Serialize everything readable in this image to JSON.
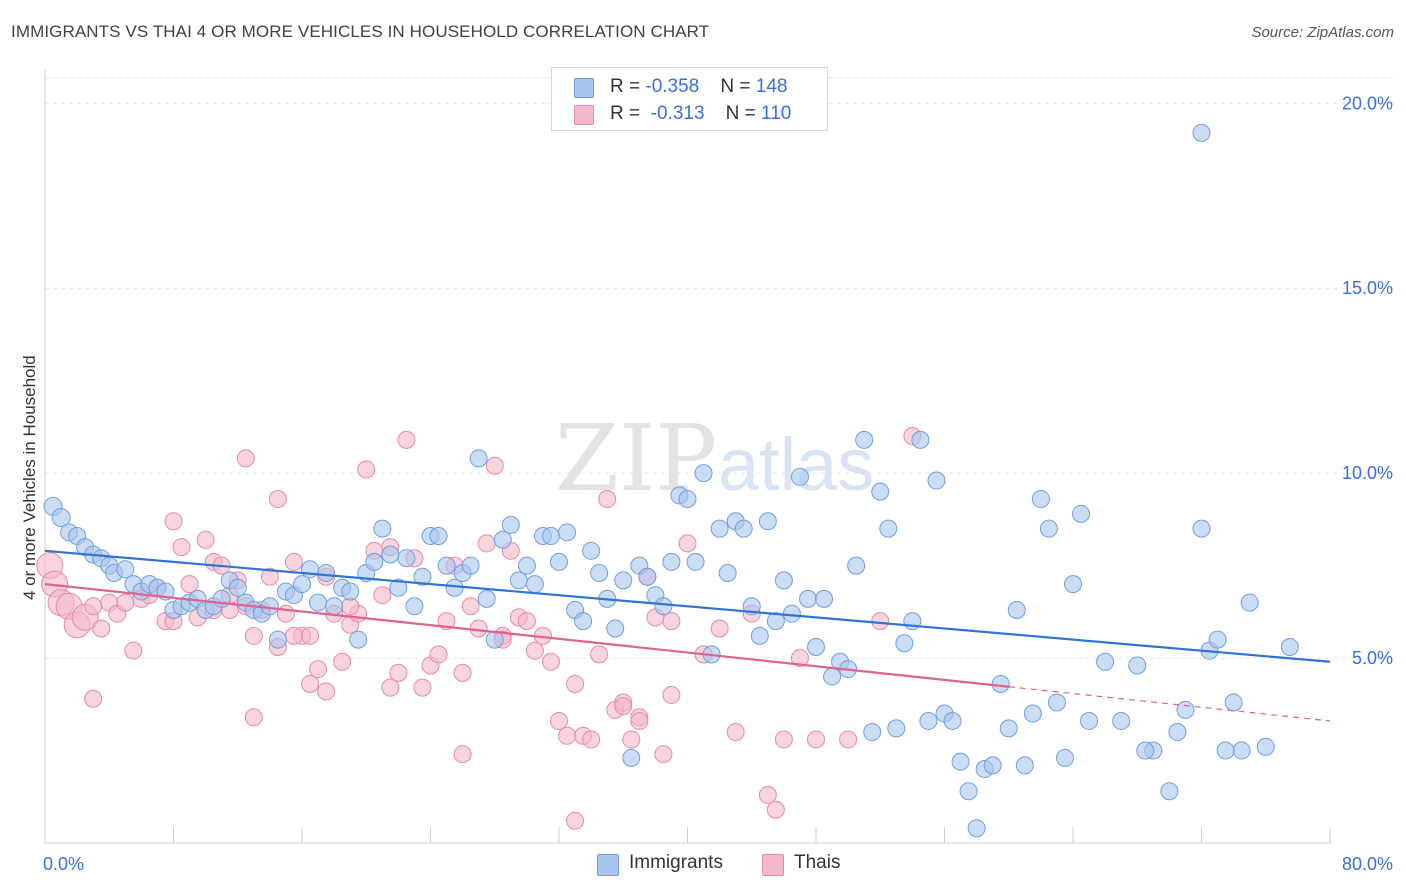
{
  "header": {
    "title": "IMMIGRANTS VS THAI 4 OR MORE VEHICLES IN HOUSEHOLD CORRELATION CHART",
    "source": "Source: ZipAtlas.com"
  },
  "legend": {
    "immigrants": {
      "r_label": "R = ",
      "r_value": "-0.358",
      "n_label": "N = ",
      "n_value": "148"
    },
    "thais": {
      "r_label": "R = ",
      "r_value": "-0.313",
      "n_label": "N = ",
      "n_value": "110"
    }
  },
  "bottom_legend": {
    "immigrants": "Immigrants",
    "thais": "Thais"
  },
  "watermark": {
    "zip": "ZIP",
    "atlas": "atlas"
  },
  "colors": {
    "immigrants_fill": "#a9c6ee",
    "immigrants_stroke": "#6f9fdf",
    "immigrants_line": "#2f73d6",
    "thais_fill": "#f4b8ca",
    "thais_stroke": "#e889a6",
    "thais_line": "#e0628f",
    "grid": "#e3e3e3",
    "tick_label": "#3a6fd8"
  },
  "chart_data": {
    "type": "scatter",
    "title": "IMMIGRANTS VS THAI 4 OR MORE VEHICLES IN HOUSEHOLD CORRELATION CHART",
    "xlabel": "",
    "ylabel": "4 or more Vehicles in Household",
    "xlim": [
      0,
      80
    ],
    "ylim": [
      0,
      20.9
    ],
    "x_tick_labels": [
      "0.0%",
      "80.0%"
    ],
    "y_ticks": [
      5,
      10,
      15,
      20
    ],
    "y_tick_labels": [
      "5.0%",
      "10.0%",
      "15.0%",
      "20.0%"
    ],
    "grid": true,
    "legend_position": "top-center",
    "series": [
      {
        "name": "Immigrants",
        "trend": {
          "x": [
            0,
            80
          ],
          "y": [
            7.9,
            4.9
          ],
          "dashed_from": null
        },
        "points": [
          [
            0.5,
            9.1
          ],
          [
            1.0,
            8.8
          ],
          [
            1.5,
            8.4
          ],
          [
            2.0,
            8.3
          ],
          [
            2.5,
            8.0
          ],
          [
            3.0,
            7.8
          ],
          [
            3.5,
            7.7
          ],
          [
            4.0,
            7.5
          ],
          [
            4.3,
            7.3
          ],
          [
            5.0,
            7.4
          ],
          [
            5.5,
            7.0
          ],
          [
            6.0,
            6.8
          ],
          [
            6.5,
            7.0
          ],
          [
            7.0,
            6.9
          ],
          [
            7.5,
            6.8
          ],
          [
            8.0,
            6.3
          ],
          [
            8.5,
            6.4
          ],
          [
            9.0,
            6.5
          ],
          [
            9.5,
            6.6
          ],
          [
            10.0,
            6.3
          ],
          [
            10.5,
            6.4
          ],
          [
            11.0,
            6.6
          ],
          [
            11.5,
            7.1
          ],
          [
            12.0,
            6.9
          ],
          [
            12.5,
            6.5
          ],
          [
            13.0,
            6.3
          ],
          [
            13.5,
            6.2
          ],
          [
            14.0,
            6.4
          ],
          [
            14.5,
            5.5
          ],
          [
            15.0,
            6.8
          ],
          [
            15.5,
            6.7
          ],
          [
            16.0,
            7.0
          ],
          [
            16.5,
            7.4
          ],
          [
            17.0,
            6.5
          ],
          [
            17.5,
            7.3
          ],
          [
            18.0,
            6.4
          ],
          [
            18.5,
            6.9
          ],
          [
            19.0,
            6.8
          ],
          [
            19.5,
            5.5
          ],
          [
            20.0,
            7.3
          ],
          [
            20.5,
            7.6
          ],
          [
            21.0,
            8.5
          ],
          [
            21.5,
            7.8
          ],
          [
            22.0,
            6.9
          ],
          [
            22.5,
            7.7
          ],
          [
            23.0,
            6.4
          ],
          [
            23.5,
            7.2
          ],
          [
            24.0,
            8.3
          ],
          [
            24.5,
            8.3
          ],
          [
            25.0,
            7.5
          ],
          [
            25.5,
            6.9
          ],
          [
            26.0,
            7.3
          ],
          [
            26.5,
            7.5
          ],
          [
            27.0,
            10.4
          ],
          [
            27.5,
            6.6
          ],
          [
            28.0,
            5.5
          ],
          [
            28.5,
            8.2
          ],
          [
            29.0,
            8.6
          ],
          [
            29.5,
            7.1
          ],
          [
            30.0,
            7.5
          ],
          [
            30.5,
            7.0
          ],
          [
            31.0,
            8.3
          ],
          [
            31.5,
            8.3
          ],
          [
            32.0,
            7.6
          ],
          [
            32.5,
            8.4
          ],
          [
            33.0,
            6.3
          ],
          [
            33.5,
            6.0
          ],
          [
            34.0,
            7.9
          ],
          [
            34.5,
            7.3
          ],
          [
            35.0,
            6.6
          ],
          [
            35.5,
            5.8
          ],
          [
            36.0,
            7.1
          ],
          [
            36.5,
            2.3
          ],
          [
            37.0,
            7.5
          ],
          [
            37.5,
            7.2
          ],
          [
            38.0,
            6.7
          ],
          [
            38.5,
            6.4
          ],
          [
            39.0,
            7.6
          ],
          [
            39.5,
            9.4
          ],
          [
            40.0,
            9.3
          ],
          [
            40.5,
            7.6
          ],
          [
            41.0,
            10.0
          ],
          [
            41.5,
            5.1
          ],
          [
            42.0,
            8.5
          ],
          [
            42.5,
            7.3
          ],
          [
            43.0,
            8.7
          ],
          [
            43.5,
            8.5
          ],
          [
            44.0,
            6.4
          ],
          [
            44.5,
            5.6
          ],
          [
            45.0,
            8.7
          ],
          [
            45.5,
            6.0
          ],
          [
            46.0,
            7.1
          ],
          [
            46.5,
            6.2
          ],
          [
            47.0,
            9.9
          ],
          [
            47.5,
            6.6
          ],
          [
            48.0,
            5.3
          ],
          [
            48.5,
            6.6
          ],
          [
            49.0,
            4.5
          ],
          [
            49.5,
            4.9
          ],
          [
            50.0,
            4.7
          ],
          [
            50.5,
            7.5
          ],
          [
            51.0,
            10.9
          ],
          [
            51.5,
            3.0
          ],
          [
            52.0,
            9.5
          ],
          [
            52.5,
            8.5
          ],
          [
            53.0,
            3.1
          ],
          [
            53.5,
            5.4
          ],
          [
            54.0,
            6.0
          ],
          [
            54.5,
            10.9
          ],
          [
            55.0,
            3.3
          ],
          [
            55.5,
            9.8
          ],
          [
            56.0,
            3.5
          ],
          [
            56.5,
            3.3
          ],
          [
            57.0,
            2.2
          ],
          [
            57.5,
            1.4
          ],
          [
            58.0,
            0.4
          ],
          [
            58.5,
            2.0
          ],
          [
            59.0,
            2.1
          ],
          [
            59.5,
            4.3
          ],
          [
            60.0,
            3.1
          ],
          [
            60.5,
            6.3
          ],
          [
            61.0,
            2.1
          ],
          [
            61.5,
            3.5
          ],
          [
            62.0,
            9.3
          ],
          [
            62.5,
            8.5
          ],
          [
            63.0,
            3.8
          ],
          [
            63.5,
            2.3
          ],
          [
            64.0,
            7.0
          ],
          [
            64.5,
            8.9
          ],
          [
            65.0,
            3.3
          ],
          [
            66.0,
            4.9
          ],
          [
            67.0,
            3.3
          ],
          [
            68.0,
            4.8
          ],
          [
            69.0,
            2.5
          ],
          [
            70.0,
            1.4
          ],
          [
            70.5,
            3.0
          ],
          [
            71.0,
            3.6
          ],
          [
            72.0,
            8.5
          ],
          [
            72.5,
            5.2
          ],
          [
            73.0,
            5.5
          ],
          [
            74.0,
            3.8
          ],
          [
            74.5,
            2.5
          ],
          [
            75.0,
            6.5
          ],
          [
            76.0,
            2.6
          ],
          [
            77.5,
            5.3
          ],
          [
            73.5,
            2.5
          ],
          [
            68.5,
            2.5
          ],
          [
            72.0,
            19.2
          ]
        ]
      },
      {
        "name": "Thais",
        "trend": {
          "x": [
            0,
            80
          ],
          "y": [
            7.0,
            3.3
          ],
          "dashed_from": 60
        },
        "points": [
          [
            0.3,
            7.5
          ],
          [
            0.6,
            7.0
          ],
          [
            1.0,
            6.5
          ],
          [
            1.5,
            6.4
          ],
          [
            2.0,
            5.9
          ],
          [
            2.5,
            6.1
          ],
          [
            3.0,
            6.4
          ],
          [
            3.5,
            5.8
          ],
          [
            4.0,
            6.5
          ],
          [
            4.5,
            6.2
          ],
          [
            5.0,
            6.5
          ],
          [
            5.5,
            5.2
          ],
          [
            6.0,
            6.6
          ],
          [
            6.5,
            6.7
          ],
          [
            7.0,
            6.9
          ],
          [
            7.5,
            6.0
          ],
          [
            8.0,
            8.7
          ],
          [
            8.5,
            8.0
          ],
          [
            9.0,
            7.0
          ],
          [
            9.5,
            6.1
          ],
          [
            10.0,
            8.2
          ],
          [
            10.5,
            7.6
          ],
          [
            11.0,
            7.5
          ],
          [
            11.5,
            6.3
          ],
          [
            12.0,
            7.1
          ],
          [
            12.5,
            6.4
          ],
          [
            13.0,
            5.6
          ],
          [
            13.5,
            6.3
          ],
          [
            14.0,
            7.2
          ],
          [
            14.5,
            5.3
          ],
          [
            15.0,
            6.2
          ],
          [
            15.5,
            7.6
          ],
          [
            16.0,
            5.6
          ],
          [
            16.5,
            5.6
          ],
          [
            17.0,
            4.7
          ],
          [
            17.5,
            7.2
          ],
          [
            18.0,
            6.2
          ],
          [
            18.5,
            4.9
          ],
          [
            19.0,
            5.9
          ],
          [
            19.5,
            6.2
          ],
          [
            20.0,
            10.1
          ],
          [
            20.5,
            7.9
          ],
          [
            21.0,
            6.7
          ],
          [
            21.5,
            8.0
          ],
          [
            22.0,
            4.6
          ],
          [
            22.5,
            10.9
          ],
          [
            23.0,
            7.7
          ],
          [
            23.5,
            4.2
          ],
          [
            24.0,
            4.8
          ],
          [
            24.5,
            5.1
          ],
          [
            25.0,
            6.0
          ],
          [
            25.5,
            7.5
          ],
          [
            26.0,
            4.6
          ],
          [
            26.5,
            6.4
          ],
          [
            27.0,
            5.8
          ],
          [
            27.5,
            8.1
          ],
          [
            28.0,
            10.2
          ],
          [
            28.5,
            5.6
          ],
          [
            29.0,
            7.9
          ],
          [
            29.5,
            6.1
          ],
          [
            30.0,
            6.0
          ],
          [
            30.5,
            5.2
          ],
          [
            31.0,
            5.6
          ],
          [
            31.5,
            4.9
          ],
          [
            32.0,
            3.3
          ],
          [
            32.5,
            2.9
          ],
          [
            33.0,
            4.3
          ],
          [
            33.5,
            2.9
          ],
          [
            34.0,
            2.8
          ],
          [
            34.5,
            5.1
          ],
          [
            35.0,
            9.3
          ],
          [
            35.5,
            3.6
          ],
          [
            36.0,
            3.8
          ],
          [
            36.5,
            2.8
          ],
          [
            37.0,
            3.4
          ],
          [
            37.5,
            7.2
          ],
          [
            38.0,
            6.1
          ],
          [
            38.5,
            2.4
          ],
          [
            39.0,
            6.0
          ],
          [
            40.0,
            8.1
          ],
          [
            41.0,
            5.1
          ],
          [
            42.0,
            5.8
          ],
          [
            43.0,
            3.0
          ],
          [
            44.0,
            6.2
          ],
          [
            45.0,
            1.3
          ],
          [
            46.0,
            2.8
          ],
          [
            47.0,
            5.0
          ],
          [
            48.0,
            2.8
          ],
          [
            50.0,
            2.8
          ],
          [
            52.0,
            6.0
          ],
          [
            54.0,
            11.0
          ],
          [
            3.0,
            3.9
          ],
          [
            8.0,
            6.0
          ],
          [
            10.5,
            6.3
          ],
          [
            11.5,
            6.7
          ],
          [
            12.5,
            10.4
          ],
          [
            13.0,
            3.4
          ],
          [
            14.5,
            9.3
          ],
          [
            16.5,
            4.3
          ],
          [
            17.5,
            4.1
          ],
          [
            21.5,
            4.2
          ],
          [
            26.0,
            2.4
          ],
          [
            28.5,
            5.5
          ],
          [
            36.0,
            3.7
          ],
          [
            37.0,
            3.3
          ],
          [
            39.0,
            4.0
          ],
          [
            45.5,
            0.9
          ],
          [
            33.0,
            0.6
          ],
          [
            15.5,
            5.6
          ],
          [
            19.0,
            6.4
          ]
        ]
      }
    ]
  }
}
